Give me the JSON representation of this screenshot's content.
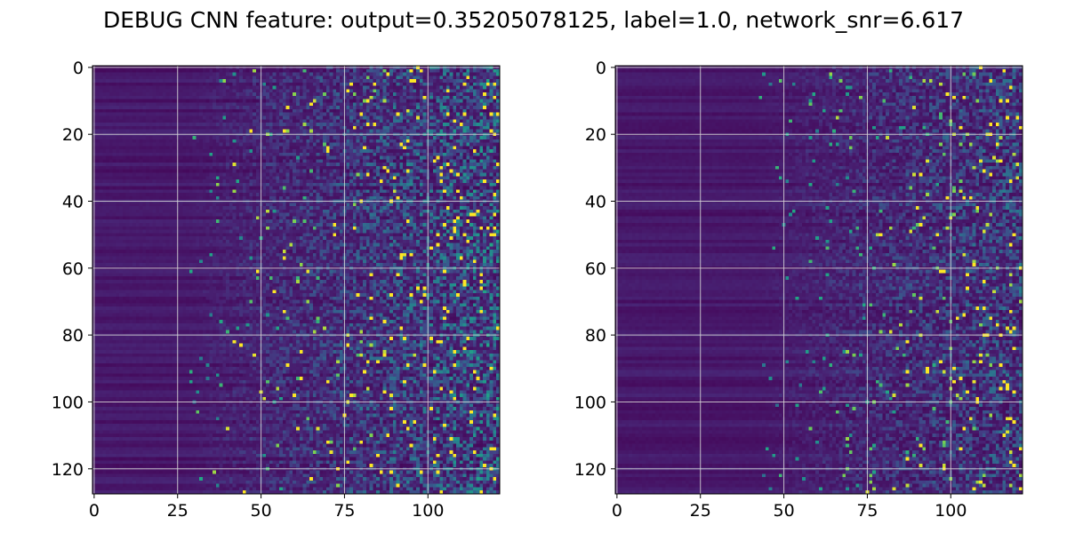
{
  "figure": {
    "title": "DEBUG CNN feature: output=0.35205078125, label=1.0, network_snr=6.617"
  },
  "colormap": "viridis",
  "chart_data": [
    {
      "type": "heatmap",
      "panel": "left",
      "rows": 128,
      "cols": 122,
      "xlim": [
        -0.5,
        121.5
      ],
      "ylim": [
        127.5,
        -0.5
      ],
      "xticks": [
        0,
        25,
        50,
        75,
        100
      ],
      "yticks": [
        0,
        20,
        40,
        60,
        80,
        100,
        120
      ],
      "grid": true,
      "value_range": [
        0,
        1
      ],
      "structure": "low uniform values (dark purple, horizontal banding) for columns 0-~30, gradually increasing noisy activity toward the right; brightest speckles concentrated in columns ~70-121"
    },
    {
      "type": "heatmap",
      "panel": "right",
      "rows": 128,
      "cols": 122,
      "xlim": [
        -0.5,
        121.5
      ],
      "ylim": [
        127.5,
        -0.5
      ],
      "xticks": [
        0,
        25,
        50,
        75,
        100
      ],
      "yticks": [
        0,
        20,
        40,
        60,
        80,
        100,
        120
      ],
      "grid": true,
      "value_range": [
        0,
        1
      ],
      "structure": "low uniform values (dark purple, horizontal banding) for columns 0-~45, sparse noisy activity toward the right, dimmer than the left panel with fewer bright speckles"
    }
  ]
}
